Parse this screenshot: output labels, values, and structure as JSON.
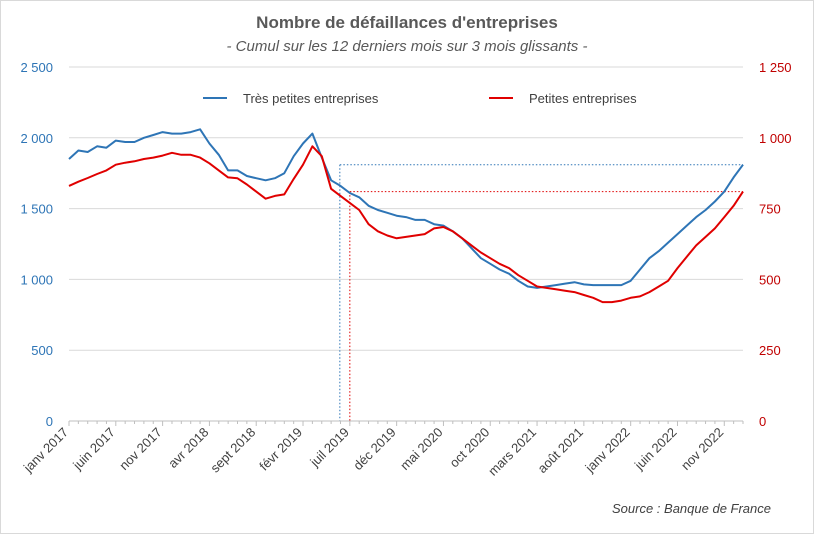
{
  "chart_data": {
    "type": "line",
    "title": "Nombre de défaillances d'entreprises",
    "subtitle": "- Cumul sur les 12 derniers mois sur 3 mois glissants -",
    "source": "Source : Banque de France",
    "x_tick_labels": [
      "janv 2017",
      "juin 2017",
      "nov 2017",
      "avr 2018",
      "sept 2018",
      "févr 2019",
      "juil 2019",
      "déc 2019",
      "mai 2020",
      "oct 2020",
      "mars 2021",
      "août 2021",
      "janv 2022",
      "juin 2022",
      "nov 2022"
    ],
    "y_left": {
      "ylim": [
        0,
        2500
      ],
      "ticks": [
        0,
        500,
        1000,
        1500,
        2000,
        2500
      ],
      "tick_labels": [
        "0",
        "500",
        "1 000",
        "1 500",
        "2 000",
        "2 500"
      ],
      "color": "#2e75b6"
    },
    "y_right": {
      "ylim": [
        0,
        1250
      ],
      "ticks": [
        0,
        250,
        500,
        750,
        1000,
        1250
      ],
      "tick_labels": [
        "0",
        "250",
        "500",
        "750",
        "1 000",
        "1 250"
      ],
      "color": "#c00000"
    },
    "legend_placement": "top",
    "grid": true,
    "series": [
      {
        "name": "Très petites entreprises",
        "axis": "left",
        "color": "#2e75b6",
        "values": [
          1850,
          1910,
          1900,
          1940,
          1930,
          1980,
          1970,
          1970,
          2000,
          2020,
          2040,
          2030,
          2030,
          2040,
          2060,
          1960,
          1880,
          1770,
          1770,
          1730,
          1715,
          1700,
          1715,
          1750,
          1870,
          1960,
          2030,
          1860,
          1700,
          1660,
          1610,
          1580,
          1520,
          1490,
          1470,
          1450,
          1440,
          1420,
          1420,
          1390,
          1380,
          1340,
          1290,
          1220,
          1150,
          1110,
          1070,
          1040,
          990,
          950,
          940,
          950,
          960,
          970,
          980,
          965,
          960,
          960,
          960,
          960,
          990,
          1070,
          1150,
          1200,
          1260,
          1320,
          1380,
          1440,
          1490,
          1550,
          1620,
          1720,
          1810
        ]
      },
      {
        "name": "Petites entreprises",
        "axis": "right",
        "color": "#e00000",
        "values": [
          830,
          845,
          858,
          872,
          885,
          905,
          912,
          917,
          925,
          930,
          937,
          947,
          940,
          940,
          930,
          910,
          885,
          860,
          857,
          835,
          810,
          785,
          795,
          800,
          855,
          905,
          970,
          935,
          820,
          795,
          770,
          745,
          695,
          670,
          655,
          645,
          650,
          655,
          660,
          680,
          685,
          670,
          645,
          620,
          595,
          575,
          555,
          540,
          515,
          495,
          475,
          470,
          465,
          460,
          455,
          445,
          435,
          420,
          420,
          425,
          435,
          440,
          455,
          475,
          495,
          540,
          580,
          620,
          650,
          680,
          720,
          760,
          810
        ]
      }
    ],
    "reference_lines": [
      {
        "series": "Très petites entreprises",
        "axis": "left",
        "value": 1810,
        "from": "juil 2019"
      },
      {
        "series": "Petites entreprises",
        "axis": "right",
        "value": 810,
        "from": "juil 2019"
      }
    ]
  }
}
